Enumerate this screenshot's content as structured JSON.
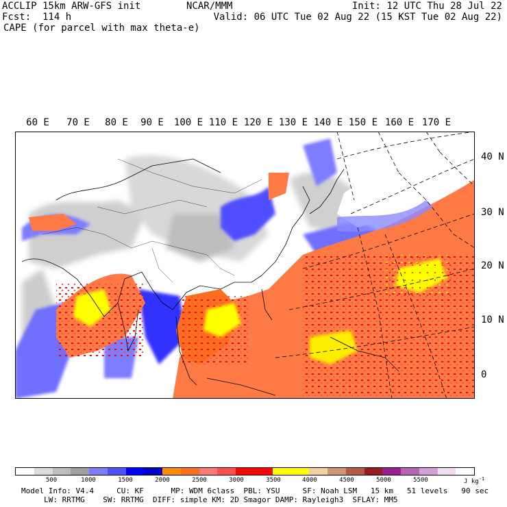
{
  "header": {
    "line1_left": "ACCLIP 15km ARW-GFS init",
    "line1_center": "NCAR/MMM",
    "line1_right": "Init: 12 UTC Thu 28 Jul 22",
    "line2_left": "Fcst:  114 h",
    "line2_right": "Valid: 06 UTC Tue 02 Aug 22 (15 KST Tue 02 Aug 22)",
    "line3_left": "CAPE (for parcel with max theta-e)"
  },
  "map": {
    "longitude_labels": [
      "60 E",
      "70 E",
      "80 E",
      "90 E",
      "100 E",
      "110 E",
      "120 E",
      "130 E",
      "140 E",
      "150 E",
      "160 E",
      "170 E"
    ],
    "latitude_labels": [
      "40 N",
      "30 N",
      "20 N",
      "10 N",
      "0"
    ]
  },
  "colorbar": {
    "colors": [
      "#ffffff",
      "#dcdcdc",
      "#bebebe",
      "#a0a0a0",
      "#7d7dff",
      "#5050ff",
      "#0000ff",
      "#0000c8",
      "#ff8c00",
      "#ff6e1e",
      "#ff7878",
      "#ff5050",
      "#ff0000",
      "#ff0000",
      "#ffff00",
      "#ffff00",
      "#f0d2a0",
      "#d29678",
      "#b45a46",
      "#961e1e",
      "#961e96",
      "#b464b4",
      "#d2a0d2",
      "#f0dcf0",
      "#ffffff"
    ],
    "tick_labels": [
      "500",
      "1000",
      "1500",
      "2000",
      "2500",
      "3000",
      "3500",
      "4000",
      "4500",
      "5000",
      "5500"
    ],
    "units": "J kg",
    "units_exp": "-1"
  },
  "footer": {
    "line1": "Model Info: V4.4     CU: KF      MP: WDM 6class  PBL: YSU     SF: Noah LSM   15 km   51 levels   90 sec",
    "line2": "     LW: RRTMG    SW: RRTMG  DIFF: simple KM: 2D Smagor DAMP: Rayleigh3  SFLAY: MM5"
  }
}
